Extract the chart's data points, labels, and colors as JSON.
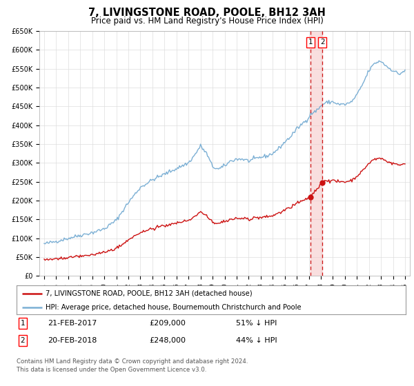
{
  "title": "7, LIVINGSTONE ROAD, POOLE, BH12 3AH",
  "subtitle": "Price paid vs. HM Land Registry's House Price Index (HPI)",
  "title_fontsize": 10.5,
  "subtitle_fontsize": 8.5,
  "ylim": [
    0,
    650000
  ],
  "yticks": [
    0,
    50000,
    100000,
    150000,
    200000,
    250000,
    300000,
    350000,
    400000,
    450000,
    500000,
    550000,
    600000,
    650000
  ],
  "ytick_labels": [
    "£0",
    "£50K",
    "£100K",
    "£150K",
    "£200K",
    "£250K",
    "£300K",
    "£350K",
    "£400K",
    "£450K",
    "£500K",
    "£550K",
    "£600K",
    "£650K"
  ],
  "hpi_color": "#7bafd4",
  "property_color": "#cc1111",
  "vline_color": "#cc1111",
  "shade_color": "#f5c0c0",
  "transaction1": {
    "date_num": 2017.12,
    "price": 209000,
    "label": "1",
    "date_str": "21-FEB-2017",
    "pct": "51% ↓ HPI"
  },
  "transaction2": {
    "date_num": 2018.12,
    "price": 248000,
    "label": "2",
    "date_str": "20-FEB-2018",
    "pct": "44% ↓ HPI"
  },
  "legend_line1": "7, LIVINGSTONE ROAD, POOLE, BH12 3AH (detached house)",
  "legend_line2": "HPI: Average price, detached house, Bournemouth Christchurch and Poole",
  "footer1": "Contains HM Land Registry data © Crown copyright and database right 2024.",
  "footer2": "This data is licensed under the Open Government Licence v3.0.",
  "background_color": "#ffffff",
  "grid_color": "#dddddd"
}
